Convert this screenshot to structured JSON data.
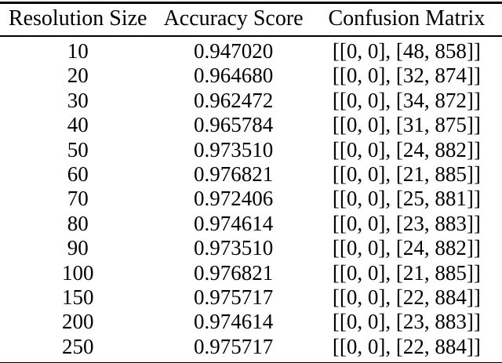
{
  "colors": {
    "background": "#ffffff",
    "text": "#000000",
    "rule": "#000000"
  },
  "table": {
    "columns": [
      "Resolution Size",
      "Accuracy Score",
      "Confusion Matrix"
    ],
    "rows": [
      [
        "10",
        "0.947020",
        "[[0, 0], [48, 858]]"
      ],
      [
        "20",
        "0.964680",
        "[[0, 0], [32, 874]]"
      ],
      [
        "30",
        "0.962472",
        "[[0, 0], [34, 872]]"
      ],
      [
        "40",
        "0.965784",
        "[[0, 0], [31, 875]]"
      ],
      [
        "50",
        "0.973510",
        "[[0, 0], [24, 882]]"
      ],
      [
        "60",
        "0.976821",
        "[[0, 0], [21, 885]]"
      ],
      [
        "70",
        "0.972406",
        "[[0, 0], [25, 881]]"
      ],
      [
        "80",
        "0.974614",
        "[[0, 0], [23, 883]]"
      ],
      [
        "90",
        "0.973510",
        "[[0, 0], [24, 882]]"
      ],
      [
        "100",
        "0.976821",
        "[[0, 0], [21, 885]]"
      ],
      [
        "150",
        "0.975717",
        "[[0, 0], [22, 884]]"
      ],
      [
        "200",
        "0.974614",
        "[[0, 0], [23, 883]]"
      ],
      [
        "250",
        "0.975717",
        "[[0, 0], [22, 884]]"
      ]
    ]
  }
}
